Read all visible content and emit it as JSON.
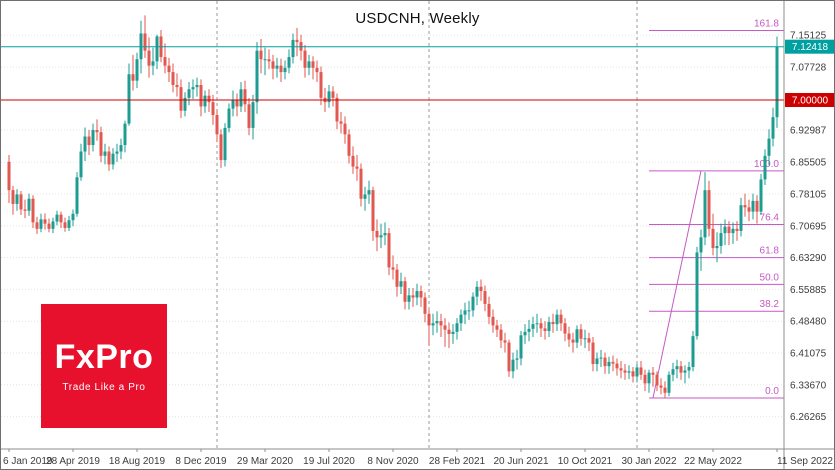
{
  "window": {
    "title": "USDCNH, Weekly"
  },
  "logo": {
    "brand": "FxPro",
    "tagline": "Trade Like a Pro",
    "background": "#E8112D"
  },
  "colors": {
    "up_candle": "#1E9C92",
    "down_candle": "#E2574F",
    "hline": "#CC0000",
    "current_price": "#00A0A0",
    "fibonacci": "#C45AC4",
    "grid": "#E4E4E4",
    "year_separator": "#999999",
    "axis_text": "#3C3C3C",
    "axis_border": "#8C8C8C"
  },
  "chart_data": {
    "type": "candlestick",
    "title": "USDCNH, Weekly",
    "symbol": "USDCNH",
    "timeframe": "Weekly",
    "legend_position": "none",
    "grid": true,
    "y_axis": {
      "price_top": 7.2306,
      "price_bottom": 6.1871,
      "tick_labels": [
        "7.15125",
        "7.07728",
        "7.00000",
        "6.92987",
        "6.85505",
        "6.78105",
        "6.70695",
        "6.63290",
        "6.55885",
        "6.48480",
        "6.41075",
        "6.33670",
        "6.26265"
      ]
    },
    "x_axis": {
      "labels": [
        {
          "week": 0,
          "label": "6 Jan 2019"
        },
        {
          "week": 16,
          "label": "28 Apr 2019"
        },
        {
          "week": 32,
          "label": "18 Aug 2019"
        },
        {
          "week": 48,
          "label": "8 Dec 2019"
        },
        {
          "week": 64,
          "label": "29 Mar 2020"
        },
        {
          "week": 80,
          "label": "19 Jul 2020"
        },
        {
          "week": 96,
          "label": "8 Nov 2020"
        },
        {
          "week": 112,
          "label": "28 Feb 2021"
        },
        {
          "week": 128,
          "label": "20 Jun 2021"
        },
        {
          "week": 144,
          "label": "10 Oct 2021"
        },
        {
          "week": 160,
          "label": "30 Jan 2022"
        },
        {
          "week": 176,
          "label": "22 May 2022"
        },
        {
          "week": 192,
          "label": "11 Sep 2022"
        }
      ]
    },
    "current_price": {
      "value": 7.12418,
      "label": "7.12418"
    },
    "horizontal_line": {
      "value": 7.0,
      "label": "7.00000"
    },
    "year_separators": [
      52,
      105,
      157
    ],
    "fibonacci": {
      "price_0": 6.306,
      "price_100": 6.835,
      "trend_from_week": 161,
      "trend_to_week": 173,
      "lines_from_week": 160,
      "levels": [
        {
          "ratio": 0.0,
          "label": "0.0"
        },
        {
          "ratio": 38.2,
          "label": "38.2"
        },
        {
          "ratio": 50.0,
          "label": "50.0"
        },
        {
          "ratio": 61.8,
          "label": "61.8"
        },
        {
          "ratio": 76.4,
          "label": "76.4"
        },
        {
          "ratio": 100.0,
          "label": "100.0"
        },
        {
          "ratio": 161.8,
          "label": "161.8"
        }
      ]
    },
    "candles_ohlc": [
      [
        6.856,
        6.872,
        6.76,
        6.79
      ],
      [
        6.79,
        6.8,
        6.733,
        6.758
      ],
      [
        6.758,
        6.792,
        6.742,
        6.78
      ],
      [
        6.78,
        6.788,
        6.732,
        6.745
      ],
      [
        6.745,
        6.768,
        6.725,
        6.742
      ],
      [
        6.742,
        6.782,
        6.73,
        6.77
      ],
      [
        6.77,
        6.778,
        6.702,
        6.715
      ],
      [
        6.715,
        6.728,
        6.688,
        6.7
      ],
      [
        6.7,
        6.735,
        6.692,
        6.722
      ],
      [
        6.722,
        6.736,
        6.698,
        6.712
      ],
      [
        6.712,
        6.724,
        6.692,
        6.7
      ],
      [
        6.7,
        6.726,
        6.69,
        6.717
      ],
      [
        6.717,
        6.742,
        6.708,
        6.733
      ],
      [
        6.733,
        6.74,
        6.702,
        6.715
      ],
      [
        6.715,
        6.726,
        6.693,
        6.702
      ],
      [
        6.702,
        6.73,
        6.695,
        6.72
      ],
      [
        6.72,
        6.745,
        6.706,
        6.735
      ],
      [
        6.735,
        6.832,
        6.728,
        6.82
      ],
      [
        6.82,
        6.898,
        6.812,
        6.88
      ],
      [
        6.88,
        6.936,
        6.858,
        6.915
      ],
      [
        6.915,
        6.93,
        6.872,
        6.895
      ],
      [
        6.895,
        6.945,
        6.88,
        6.93
      ],
      [
        6.93,
        6.955,
        6.905,
        6.925
      ],
      [
        6.925,
        6.938,
        6.855,
        6.87
      ],
      [
        6.87,
        6.898,
        6.85,
        6.88
      ],
      [
        6.88,
        6.892,
        6.835,
        6.85
      ],
      [
        6.85,
        6.888,
        6.838,
        6.875
      ],
      [
        6.875,
        6.898,
        6.856,
        6.88
      ],
      [
        6.88,
        6.91,
        6.862,
        6.895
      ],
      [
        6.895,
        6.952,
        6.878,
        6.945
      ],
      [
        6.945,
        7.085,
        6.94,
        7.06
      ],
      [
        7.06,
        7.105,
        7.022,
        7.045
      ],
      [
        7.045,
        7.11,
        7.028,
        7.095
      ],
      [
        7.095,
        7.185,
        7.062,
        7.155
      ],
      [
        7.155,
        7.197,
        7.098,
        7.115
      ],
      [
        7.115,
        7.146,
        7.052,
        7.08
      ],
      [
        7.08,
        7.122,
        7.058,
        7.09
      ],
      [
        7.09,
        7.152,
        7.072,
        7.148
      ],
      [
        7.148,
        7.163,
        7.088,
        7.1
      ],
      [
        7.1,
        7.132,
        7.062,
        7.08
      ],
      [
        7.08,
        7.098,
        7.042,
        7.065
      ],
      [
        7.065,
        7.085,
        7.018,
        7.035
      ],
      [
        7.035,
        7.062,
        7.008,
        7.03
      ],
      [
        7.03,
        7.048,
        6.958,
        6.975
      ],
      [
        6.975,
        7.018,
        6.962,
        7.005
      ],
      [
        7.005,
        7.042,
        6.988,
        7.025
      ],
      [
        7.025,
        7.048,
        7.002,
        7.03
      ],
      [
        7.03,
        7.052,
        7.008,
        7.035
      ],
      [
        7.035,
        7.048,
        6.962,
        6.985
      ],
      [
        6.985,
        7.022,
        6.97,
        7.01
      ],
      [
        7.01,
        7.025,
        6.972,
        6.995
      ],
      [
        6.995,
        7.012,
        6.942,
        6.965
      ],
      [
        6.965,
        6.978,
        6.902,
        6.92
      ],
      [
        6.92,
        6.932,
        6.842,
        6.86
      ],
      [
        6.86,
        6.946,
        6.845,
        6.935
      ],
      [
        6.935,
        6.992,
        6.925,
        6.98
      ],
      [
        6.98,
        7.022,
        6.962,
        7.0
      ],
      [
        7.0,
        7.015,
        6.962,
        6.985
      ],
      [
        6.985,
        7.042,
        6.972,
        7.025
      ],
      [
        7.025,
        7.045,
        6.972,
        6.99
      ],
      [
        6.99,
        7.005,
        6.918,
        6.935
      ],
      [
        6.935,
        7.012,
        6.908,
        6.995
      ],
      [
        6.995,
        7.135,
        6.968,
        7.115
      ],
      [
        7.115,
        7.142,
        7.062,
        7.095
      ],
      [
        7.095,
        7.122,
        7.058,
        7.095
      ],
      [
        7.095,
        7.118,
        7.072,
        7.09
      ],
      [
        7.09,
        7.105,
        7.048,
        7.073
      ],
      [
        7.073,
        7.098,
        7.052,
        7.08
      ],
      [
        7.08,
        7.096,
        7.042,
        7.065
      ],
      [
        7.065,
        7.092,
        7.048,
        7.075
      ],
      [
        7.075,
        7.118,
        7.062,
        7.1
      ],
      [
        7.1,
        7.155,
        7.085,
        7.14
      ],
      [
        7.14,
        7.168,
        7.102,
        7.135
      ],
      [
        7.135,
        7.152,
        7.092,
        7.115
      ],
      [
        7.115,
        7.128,
        7.052,
        7.075
      ],
      [
        7.075,
        7.105,
        7.058,
        7.09
      ],
      [
        7.09,
        7.102,
        7.048,
        7.075
      ],
      [
        7.075,
        7.092,
        7.042,
        7.065
      ],
      [
        7.065,
        7.078,
        6.988,
        7.005
      ],
      [
        7.005,
        7.028,
        6.972,
        6.995
      ],
      [
        6.995,
        7.035,
        6.982,
        7.02
      ],
      [
        7.02,
        7.032,
        6.985,
        7.005
      ],
      [
        7.005,
        7.015,
        6.932,
        6.95
      ],
      [
        6.95,
        6.972,
        6.922,
        6.945
      ],
      [
        6.945,
        6.962,
        6.898,
        6.92
      ],
      [
        6.92,
        6.932,
        6.852,
        6.87
      ],
      [
        6.87,
        6.892,
        6.828,
        6.845
      ],
      [
        6.845,
        6.872,
        6.812,
        6.84
      ],
      [
        6.84,
        6.852,
        6.752,
        6.77
      ],
      [
        6.77,
        6.798,
        6.742,
        6.78
      ],
      [
        6.78,
        6.812,
        6.758,
        6.79
      ],
      [
        6.79,
        6.798,
        6.672,
        6.695
      ],
      [
        6.695,
        6.722,
        6.648,
        6.68
      ],
      [
        6.68,
        6.712,
        6.655,
        6.685
      ],
      [
        6.685,
        6.715,
        6.662,
        6.69
      ],
      [
        6.69,
        6.702,
        6.592,
        6.61
      ],
      [
        6.61,
        6.638,
        6.582,
        6.605
      ],
      [
        6.605,
        6.618,
        6.542,
        6.565
      ],
      [
        6.565,
        6.598,
        6.548,
        6.578
      ],
      [
        6.578,
        6.588,
        6.512,
        6.53
      ],
      [
        6.53,
        6.562,
        6.512,
        6.545
      ],
      [
        6.545,
        6.562,
        6.518,
        6.54
      ],
      [
        6.54,
        6.572,
        6.522,
        6.555
      ],
      [
        6.555,
        6.568,
        6.518,
        6.54
      ],
      [
        6.54,
        6.552,
        6.482,
        6.502
      ],
      [
        6.502,
        6.512,
        6.428,
        6.475
      ],
      [
        6.475,
        6.502,
        6.452,
        6.48
      ],
      [
        6.48,
        6.508,
        6.458,
        6.485
      ],
      [
        6.485,
        6.502,
        6.448,
        6.475
      ],
      [
        6.475,
        6.492,
        6.425,
        6.465
      ],
      [
        6.465,
        6.482,
        6.422,
        6.455
      ],
      [
        6.455,
        6.478,
        6.432,
        6.46
      ],
      [
        6.46,
        6.492,
        6.442,
        6.48
      ],
      [
        6.48,
        6.512,
        6.462,
        6.5
      ],
      [
        6.5,
        6.528,
        6.478,
        6.51
      ],
      [
        6.51,
        6.532,
        6.488,
        6.51
      ],
      [
        6.51,
        6.552,
        6.495,
        6.542
      ],
      [
        6.542,
        6.578,
        6.522,
        6.565
      ],
      [
        6.565,
        6.582,
        6.532,
        6.555
      ],
      [
        6.555,
        6.568,
        6.508,
        6.525
      ],
      [
        6.525,
        6.542,
        6.478,
        6.495
      ],
      [
        6.495,
        6.512,
        6.458,
        6.475
      ],
      [
        6.475,
        6.488,
        6.448,
        6.465
      ],
      [
        6.465,
        6.478,
        6.422,
        6.44
      ],
      [
        6.44,
        6.458,
        6.412,
        6.435
      ],
      [
        6.435,
        6.442,
        6.355,
        6.368
      ],
      [
        6.368,
        6.412,
        6.352,
        6.395
      ],
      [
        6.395,
        6.418,
        6.372,
        6.398
      ],
      [
        6.398,
        6.462,
        6.382,
        6.452
      ],
      [
        6.452,
        6.478,
        6.432,
        6.46
      ],
      [
        6.46,
        6.488,
        6.438,
        6.467
      ],
      [
        6.467,
        6.495,
        6.448,
        6.478
      ],
      [
        6.478,
        6.502,
        6.458,
        6.48
      ],
      [
        6.48,
        6.492,
        6.448,
        6.468
      ],
      [
        6.468,
        6.485,
        6.442,
        6.462
      ],
      [
        6.462,
        6.495,
        6.448,
        6.483
      ],
      [
        6.483,
        6.502,
        6.458,
        6.478
      ],
      [
        6.478,
        6.512,
        6.462,
        6.5
      ],
      [
        6.5,
        6.512,
        6.462,
        6.48
      ],
      [
        6.48,
        6.492,
        6.438,
        6.456
      ],
      [
        6.456,
        6.472,
        6.425,
        6.442
      ],
      [
        6.442,
        6.458,
        6.412,
        6.435
      ],
      [
        6.435,
        6.475,
        6.422,
        6.466
      ],
      [
        6.466,
        6.478,
        6.428,
        6.444
      ],
      [
        6.444,
        6.465,
        6.422,
        6.445
      ],
      [
        6.445,
        6.458,
        6.415,
        6.435
      ],
      [
        6.435,
        6.448,
        6.368,
        6.385
      ],
      [
        6.385,
        6.412,
        6.368,
        6.398
      ],
      [
        6.398,
        6.418,
        6.378,
        6.4
      ],
      [
        6.4,
        6.412,
        6.362,
        6.38
      ],
      [
        6.38,
        6.402,
        6.362,
        6.39
      ],
      [
        6.39,
        6.405,
        6.368,
        6.386
      ],
      [
        6.386,
        6.398,
        6.358,
        6.375
      ],
      [
        6.375,
        6.392,
        6.352,
        6.37
      ],
      [
        6.37,
        6.385,
        6.348,
        6.365
      ],
      [
        6.365,
        6.382,
        6.35,
        6.368
      ],
      [
        6.368,
        6.378,
        6.342,
        6.356
      ],
      [
        6.356,
        6.385,
        6.342,
        6.377
      ],
      [
        6.377,
        6.392,
        6.348,
        6.36
      ],
      [
        6.36,
        6.372,
        6.322,
        6.34
      ],
      [
        6.34,
        6.372,
        6.318,
        6.365
      ],
      [
        6.365,
        6.378,
        6.332,
        6.36
      ],
      [
        6.36,
        6.368,
        6.322,
        6.335
      ],
      [
        6.335,
        6.352,
        6.315,
        6.33
      ],
      [
        6.33,
        6.345,
        6.306,
        6.318
      ],
      [
        6.318,
        6.368,
        6.31,
        6.36
      ],
      [
        6.36,
        6.388,
        6.345,
        6.373
      ],
      [
        6.373,
        6.395,
        6.352,
        6.38
      ],
      [
        6.38,
        6.392,
        6.348,
        6.365
      ],
      [
        6.365,
        6.382,
        6.34,
        6.37
      ],
      [
        6.37,
        6.39,
        6.352,
        6.378
      ],
      [
        6.378,
        6.462,
        6.368,
        6.45
      ],
      [
        6.45,
        6.658,
        6.442,
        6.645
      ],
      [
        6.645,
        6.698,
        6.602,
        6.68
      ],
      [
        6.68,
        6.832,
        6.662,
        6.79
      ],
      [
        6.79,
        6.812,
        6.682,
        6.7
      ],
      [
        6.7,
        6.735,
        6.638,
        6.655
      ],
      [
        6.655,
        6.692,
        6.622,
        6.66
      ],
      [
        6.66,
        6.712,
        6.642,
        6.69
      ],
      [
        6.69,
        6.722,
        6.662,
        6.705
      ],
      [
        6.705,
        6.718,
        6.662,
        6.69
      ],
      [
        6.69,
        6.715,
        6.665,
        6.7
      ],
      [
        6.7,
        6.718,
        6.672,
        6.695
      ],
      [
        6.695,
        6.772,
        6.682,
        6.755
      ],
      [
        6.755,
        6.782,
        6.728,
        6.75
      ],
      [
        6.75,
        6.768,
        6.718,
        6.74
      ],
      [
        6.74,
        6.782,
        6.722,
        6.765
      ],
      [
        6.765,
        6.778,
        6.712,
        6.74
      ],
      [
        6.74,
        6.828,
        6.732,
        6.815
      ],
      [
        6.815,
        6.885,
        6.802,
        6.87
      ],
      [
        6.87,
        6.932,
        6.848,
        6.91
      ],
      [
        6.91,
        6.982,
        6.892,
        6.96
      ],
      [
        6.96,
        7.148,
        6.935,
        7.1242
      ]
    ]
  }
}
